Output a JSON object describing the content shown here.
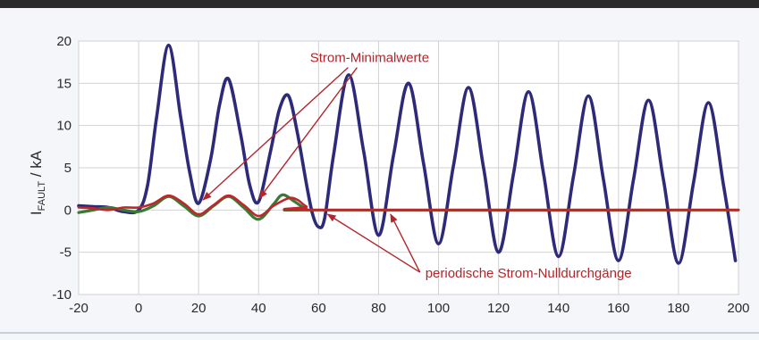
{
  "chart_data": {
    "type": "line",
    "title": "",
    "xlabel": "",
    "ylabel": {
      "prefix": "I",
      "subscript": "FAULT",
      "suffix": " / kA"
    },
    "xlim": [
      -20,
      200
    ],
    "ylim": [
      -10,
      20
    ],
    "xticks": [
      -20,
      0,
      20,
      40,
      60,
      80,
      100,
      120,
      140,
      160,
      180,
      200
    ],
    "yticks": [
      -10,
      -5,
      0,
      5,
      10,
      15,
      20
    ],
    "grid": true,
    "legend": "none",
    "series": [
      {
        "color": "#2e2a7a",
        "points": [
          [
            -20,
            0.5
          ],
          [
            -15,
            0.4
          ],
          [
            -10,
            0.3
          ],
          [
            -5,
            -0.2
          ],
          [
            0,
            0
          ],
          [
            3,
            3
          ],
          [
            6,
            11
          ],
          [
            10,
            19.5
          ],
          [
            14,
            11
          ],
          [
            17,
            4.5
          ],
          [
            20,
            0.8
          ],
          [
            24,
            6
          ],
          [
            27,
            12.5
          ],
          [
            30,
            15.5
          ],
          [
            34,
            9
          ],
          [
            37,
            3
          ],
          [
            40,
            1
          ],
          [
            44,
            7
          ],
          [
            47,
            12
          ],
          [
            50,
            13.5
          ],
          [
            53,
            9
          ],
          [
            56,
            3
          ],
          [
            58,
            -0.5
          ],
          [
            60,
            -2
          ],
          [
            62,
            -1
          ],
          [
            65,
            6.5
          ],
          [
            70,
            16
          ],
          [
            75,
            7
          ],
          [
            80,
            -3
          ],
          [
            85,
            6.5
          ],
          [
            90,
            15
          ],
          [
            95,
            5.5
          ],
          [
            100,
            -4
          ],
          [
            105,
            5.3
          ],
          [
            110,
            14.5
          ],
          [
            115,
            5
          ],
          [
            120,
            -5
          ],
          [
            125,
            4.3
          ],
          [
            130,
            14
          ],
          [
            135,
            4.3
          ],
          [
            140,
            -5.5
          ],
          [
            145,
            4
          ],
          [
            150,
            13.5
          ],
          [
            155,
            3.6
          ],
          [
            160,
            -6
          ],
          [
            165,
            3.6
          ],
          [
            170,
            13
          ],
          [
            175,
            3.6
          ],
          [
            180,
            -6.3
          ],
          [
            185,
            3.2
          ],
          [
            190,
            12.7
          ],
          [
            195,
            3
          ],
          [
            199,
            -6
          ]
        ]
      },
      {
        "color": "#c0262d",
        "points": [
          [
            -20,
            0.3
          ],
          [
            -15,
            0.2
          ],
          [
            -10,
            0
          ],
          [
            -5,
            0.3
          ],
          [
            0,
            0.3
          ],
          [
            5,
            0.8
          ],
          [
            10,
            1.7
          ],
          [
            15,
            0.8
          ],
          [
            20,
            -0.5
          ],
          [
            25,
            0.6
          ],
          [
            30,
            1.7
          ],
          [
            35,
            0.6
          ],
          [
            40,
            -0.7
          ],
          [
            45,
            0.5
          ],
          [
            50,
            1.4
          ],
          [
            53,
            1.2
          ],
          [
            56,
            0.4
          ],
          [
            60,
            0
          ],
          [
            200,
            0
          ]
        ]
      },
      {
        "color": "#3a7a34",
        "points": [
          [
            -20,
            -0.3
          ],
          [
            -15,
            0
          ],
          [
            -10,
            0.3
          ],
          [
            -5,
            0
          ],
          [
            0,
            -0.2
          ],
          [
            5,
            0.5
          ],
          [
            10,
            1.6
          ],
          [
            15,
            0.5
          ],
          [
            20,
            -0.7
          ],
          [
            25,
            0.5
          ],
          [
            30,
            1.6
          ],
          [
            35,
            0.3
          ],
          [
            40,
            -1.1
          ],
          [
            45,
            0.7
          ],
          [
            48,
            1.8
          ],
          [
            52,
            1
          ],
          [
            56,
            0.1
          ],
          [
            60,
            0
          ],
          [
            200,
            0
          ]
        ]
      }
    ],
    "annotations": [
      {
        "text": "Strom-Minimalwerte",
        "label_at": [
          77,
          17.5
        ],
        "arrows_to": [
          [
            21.5,
            1.2
          ],
          [
            40.3,
            1.4
          ]
        ]
      },
      {
        "text": "periodische Strom-Nulldurchgänge",
        "label_at": [
          130,
          -8
        ],
        "arrows_to": [
          [
            63,
            -0.5
          ],
          [
            84,
            -0.5
          ]
        ]
      }
    ]
  }
}
